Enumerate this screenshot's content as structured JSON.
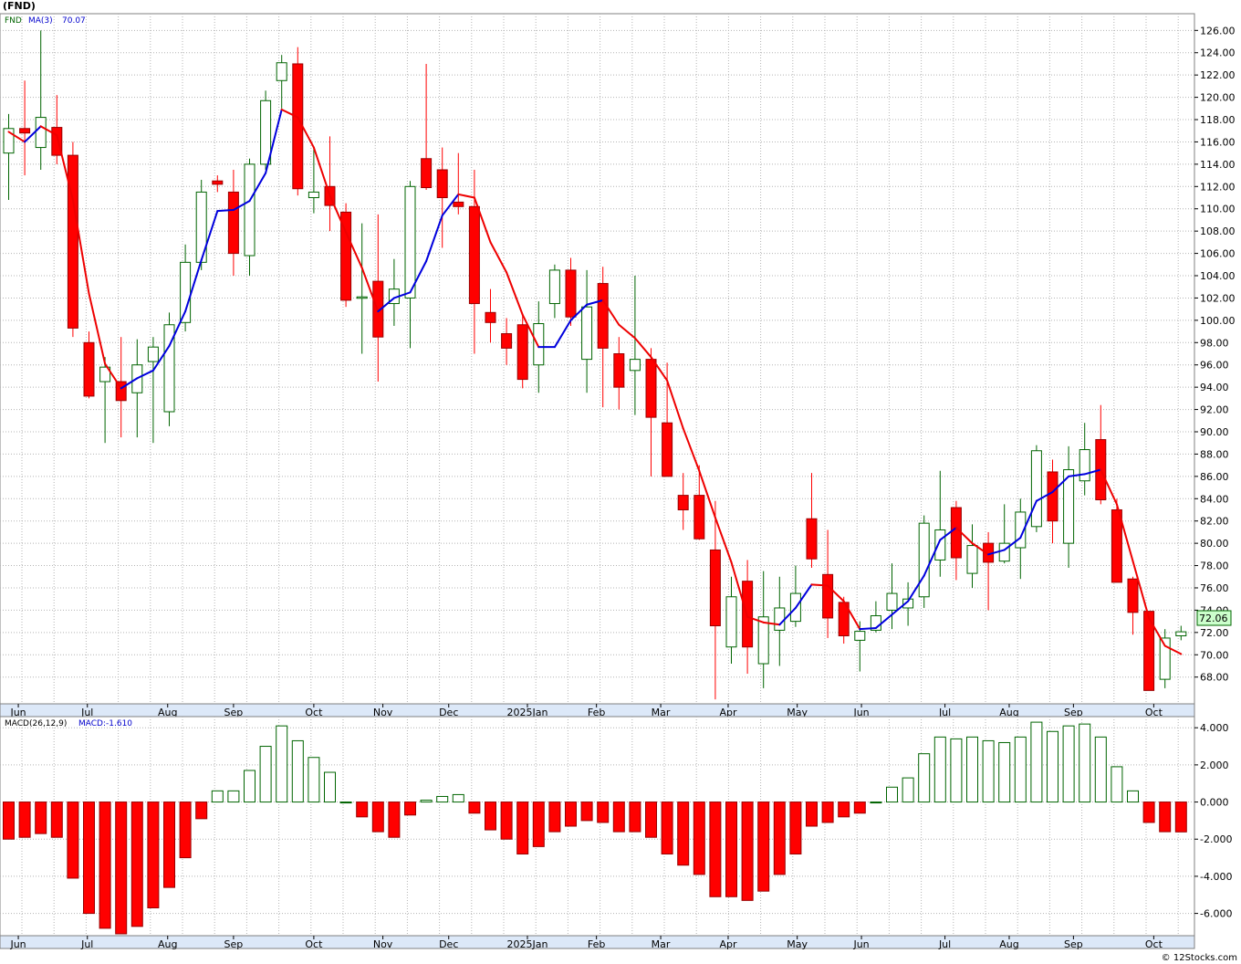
{
  "header": {
    "title": "(FND)"
  },
  "price_legend": {
    "symbol": "FND",
    "ma_label": "MA(3)",
    "ma_value": "70.07"
  },
  "macd_legend": {
    "label": "MACD(26,12,9)",
    "value_label": "MACD:-1.610"
  },
  "last_price_label": "72.06",
  "credit": "© 12Stocks.com",
  "colors": {
    "up": "#006400",
    "down": "#ff0000",
    "ma_up": "#0000dd",
    "ma_down": "#ee0000",
    "grid": "#b4b4b4",
    "label_bg": "#ccffcc"
  },
  "chart_data": [
    {
      "type": "candlestick",
      "title": "(FND)",
      "y_ticks": [
        68,
        70,
        72,
        74,
        76,
        78,
        80,
        82,
        84,
        86,
        88,
        90,
        92,
        94,
        96,
        98,
        100,
        102,
        104,
        106,
        108,
        110,
        112,
        114,
        116,
        118,
        120,
        122,
        124,
        126
      ],
      "y_tick_labels": [
        "68.00",
        "70.00",
        "72.00",
        "74.00",
        "76.00",
        "78.00",
        "80.00",
        "82.00",
        "84.00",
        "86.00",
        "88.00",
        "90.00",
        "92.00",
        "94.00",
        "96.00",
        "98.00",
        "100.00",
        "102.00",
        "104.00",
        "106.00",
        "108.00",
        "110.00",
        "112.00",
        "114.00",
        "116.00",
        "118.00",
        "120.00",
        "122.00",
        "124.00",
        "126.00"
      ],
      "ylim": [
        65.6,
        127.5
      ],
      "x_labels": [
        {
          "label": "Jun",
          "week": 0.6
        },
        {
          "label": "Jul",
          "week": 4.9
        },
        {
          "label": "Aug",
          "week": 9.9
        },
        {
          "label": "Sep",
          "week": 14.0
        },
        {
          "label": "Oct",
          "week": 19.0
        },
        {
          "label": "Nov",
          "week": 23.3
        },
        {
          "label": "Dec",
          "week": 27.4
        },
        {
          "label": "2025Jan",
          "week": 32.3
        },
        {
          "label": "Feb",
          "week": 36.6
        },
        {
          "label": "Mar",
          "week": 40.6
        },
        {
          "label": "Apr",
          "week": 44.8
        },
        {
          "label": "May",
          "week": 49.1
        },
        {
          "label": "Jun",
          "week": 53.1
        },
        {
          "label": "Jul",
          "week": 58.3
        },
        {
          "label": "Aug",
          "week": 62.3
        },
        {
          "label": "Sep",
          "week": 66.3
        },
        {
          "label": "Oct",
          "week": 71.3
        }
      ],
      "series": [
        {
          "name": "FND",
          "ohlc": [
            [
              115,
              118.5,
              110.8,
              117.2
            ],
            [
              117.2,
              121.5,
              113,
              116.8
            ],
            [
              115.5,
              126,
              113.5,
              118.2
            ],
            [
              117.3,
              120.2,
              114,
              114.8
            ],
            [
              114.8,
              116,
              98.5,
              99.3
            ],
            [
              98,
              99,
              93,
              93.2
            ],
            [
              94.5,
              96.7,
              89,
              95.8
            ],
            [
              94.5,
              98.5,
              89.5,
              92.8
            ],
            [
              93.5,
              98.3,
              89.5,
              96
            ],
            [
              96.3,
              98.5,
              89,
              97.6
            ],
            [
              91.8,
              100.7,
              90.5,
              99.6
            ],
            [
              99.8,
              106.8,
              99,
              105.2
            ],
            [
              105.2,
              112.6,
              104.5,
              111.5
            ],
            [
              112.5,
              113,
              111.5,
              112.2
            ],
            [
              111.5,
              113.5,
              104,
              106
            ],
            [
              105.8,
              114.5,
              104,
              114
            ],
            [
              114,
              120.6,
              113.5,
              119.7
            ],
            [
              121.5,
              123.8,
              119,
              123.1
            ],
            [
              123,
              124.5,
              111.2,
              111.8
            ],
            [
              111,
              115.5,
              109.6,
              111.5
            ],
            [
              112,
              116.5,
              108,
              110.3
            ],
            [
              109.7,
              110.5,
              101.2,
              101.8
            ],
            [
              102,
              108.7,
              97,
              102.1
            ],
            [
              103.5,
              109.5,
              94.5,
              98.5
            ],
            [
              101.5,
              105.5,
              99.5,
              102.8
            ],
            [
              102,
              112.5,
              97.5,
              112
            ],
            [
              114.5,
              123,
              111.7,
              111.9
            ],
            [
              113.5,
              115.5,
              106.5,
              111
            ],
            [
              110.6,
              115,
              109.5,
              110.2
            ],
            [
              110.2,
              113.5,
              97,
              101.5
            ],
            [
              100.7,
              102.8,
              98,
              99.8
            ],
            [
              98.8,
              100.2,
              96,
              97.5
            ],
            [
              99.6,
              100.5,
              93.9,
              94.7
            ],
            [
              96,
              101.7,
              93.5,
              99.7
            ],
            [
              101.5,
              105,
              100.2,
              104.5
            ],
            [
              104.5,
              105.6,
              99.5,
              100.3
            ],
            [
              96.5,
              104.5,
              93.5,
              101.2
            ],
            [
              103.3,
              104.8,
              92.2,
              97.5
            ],
            [
              97,
              98.5,
              92,
              94
            ],
            [
              95.5,
              104,
              91.5,
              96.5
            ],
            [
              96.5,
              97.5,
              86,
              91.3
            ],
            [
              90.8,
              96.2,
              86,
              86
            ],
            [
              84.3,
              86.3,
              81.2,
              83
            ],
            [
              84.3,
              87,
              80.3,
              80.4
            ],
            [
              79.4,
              83.8,
              66,
              72.6
            ],
            [
              70.7,
              77,
              69.2,
              75.2
            ],
            [
              76.6,
              78.5,
              68.3,
              70.7
            ],
            [
              69.2,
              77.5,
              67,
              73.4
            ],
            [
              72.2,
              77,
              69,
              74.2
            ],
            [
              73,
              78,
              72.5,
              75.5
            ],
            [
              82.2,
              86.3,
              77.8,
              78.6
            ],
            [
              77.2,
              81.2,
              71.5,
              73.3
            ],
            [
              74.7,
              75.2,
              71,
              71.7
            ],
            [
              71.3,
              73,
              68.5,
              72.1
            ],
            [
              72.2,
              74.8,
              72,
              73.5
            ],
            [
              74,
              78.2,
              72.3,
              75.5
            ],
            [
              74.2,
              76.5,
              72.6,
              75
            ],
            [
              75.2,
              82.5,
              74.2,
              81.8
            ],
            [
              78.5,
              86.5,
              77,
              81.2
            ],
            [
              83.2,
              83.8,
              76.7,
              78.7
            ],
            [
              77.3,
              81.7,
              76,
              79.8
            ],
            [
              80,
              81,
              74,
              78.3
            ],
            [
              78.4,
              83.5,
              78.2,
              80
            ],
            [
              79.6,
              84,
              76.8,
              82.8
            ],
            [
              81.5,
              88.8,
              81,
              88.3
            ],
            [
              86.4,
              87.5,
              80,
              82
            ],
            [
              80,
              88.7,
              77.8,
              86.6
            ],
            [
              85.6,
              90.8,
              84.3,
              88.4
            ],
            [
              89.3,
              92.4,
              83.5,
              83.9
            ],
            [
              83,
              84,
              76.5,
              76.5
            ],
            [
              76.8,
              77,
              71.8,
              73.8
            ],
            [
              73.9,
              73.9,
              66.8,
              66.8
            ],
            [
              67.8,
              72.3,
              67,
              71.5
            ],
            [
              71.7,
              72.6,
              71.3,
              72.06
            ]
          ]
        },
        {
          "name": "MA(3)",
          "values": [
            116.9,
            116,
            117.4,
            116.6,
            110.8,
            102.4,
            96.1,
            93.9,
            94.8,
            95.5,
            97.7,
            100.8,
            105.4,
            109.8,
            109.9,
            110.7,
            113.2,
            118.9,
            118.2,
            115.5,
            111.2,
            107.9,
            104.7,
            100.8,
            102,
            102.5,
            105.3,
            109.4,
            111.3,
            111,
            107,
            104.3,
            100.5,
            97.6,
            97.6,
            100,
            101.4,
            101.8,
            99.6,
            98.4,
            96.7,
            94.6,
            90.3,
            86.5,
            82.3,
            78.3,
            73.4,
            72.9,
            72.7,
            74.2,
            76.3,
            76.2,
            74.8,
            72.3,
            72.4,
            73.6,
            74.8,
            77.1,
            80.3,
            81.4,
            80,
            79,
            79.4,
            80.5,
            83.8,
            84.6,
            86,
            86.2,
            86.6,
            83.5,
            78.4,
            73.3,
            70.8,
            70.07
          ]
        }
      ]
    },
    {
      "type": "bar",
      "title": "MACD(26,12,9)",
      "y_ticks": [
        -6,
        -4,
        -2,
        0,
        2,
        4
      ],
      "y_tick_labels": [
        "-6.000",
        "-4.000",
        "-2.000",
        "0.000",
        "2.000",
        "4.000"
      ],
      "ylim": [
        -7.2,
        4.6
      ],
      "series": [
        {
          "name": "MACD",
          "values": [
            -2.0,
            -1.9,
            -1.7,
            -1.9,
            -4.1,
            -6.0,
            -6.8,
            -7.1,
            -6.7,
            -5.7,
            -4.6,
            -3.0,
            -0.9,
            0.6,
            0.6,
            1.7,
            3.0,
            4.1,
            3.3,
            2.4,
            1.6,
            0.0,
            -0.8,
            -1.6,
            -1.9,
            -0.7,
            0.1,
            0.3,
            0.4,
            -0.6,
            -1.5,
            -2.0,
            -2.8,
            -2.4,
            -1.6,
            -1.3,
            -1.0,
            -1.1,
            -1.6,
            -1.6,
            -1.9,
            -2.8,
            -3.4,
            -3.9,
            -5.1,
            -5.1,
            -5.3,
            -4.8,
            -3.9,
            -2.8,
            -1.3,
            -1.1,
            -0.8,
            -0.6,
            0.0,
            0.8,
            1.3,
            2.6,
            3.5,
            3.4,
            3.5,
            3.3,
            3.2,
            3.5,
            4.3,
            3.8,
            4.1,
            4.2,
            3.5,
            1.9,
            0.6,
            -1.1,
            -1.6,
            -1.61
          ]
        }
      ]
    }
  ]
}
